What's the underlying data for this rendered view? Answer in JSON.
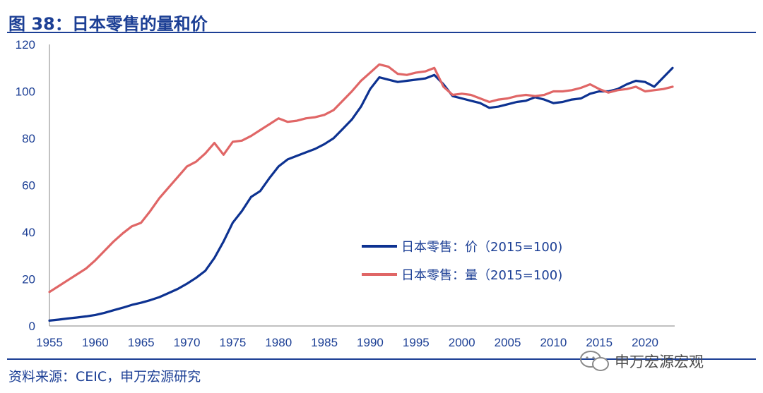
{
  "header": {
    "title": "图 38：日本零售的量和价"
  },
  "footer": {
    "source": "资料来源：CEIC，申万宏源研究",
    "watermark": "申万宏源宏观"
  },
  "colors": {
    "accent": "#1c3f95",
    "price_series": "#0d3291",
    "volume_series": "#e06666"
  },
  "chart_data": {
    "type": "line",
    "xlim": [
      1955,
      2023
    ],
    "ylim": [
      0,
      120
    ],
    "xticks": [
      1955,
      1960,
      1965,
      1970,
      1975,
      1980,
      1985,
      1990,
      1995,
      2000,
      2005,
      2010,
      2015,
      2020
    ],
    "yticks": [
      0,
      20,
      40,
      60,
      80,
      100,
      120
    ],
    "grid": false,
    "legend_position": "center-right",
    "series": [
      {
        "name": "日本零售：价（2015=100)",
        "color": "#0d3291",
        "x": [
          1955,
          1956,
          1957,
          1958,
          1959,
          1960,
          1961,
          1962,
          1963,
          1964,
          1965,
          1966,
          1967,
          1968,
          1969,
          1970,
          1971,
          1972,
          1973,
          1974,
          1975,
          1976,
          1977,
          1978,
          1979,
          1980,
          1981,
          1982,
          1983,
          1984,
          1985,
          1986,
          1987,
          1988,
          1989,
          1990,
          1991,
          1992,
          1993,
          1994,
          1995,
          1996,
          1997,
          1998,
          1999,
          2000,
          2001,
          2002,
          2003,
          2004,
          2005,
          2006,
          2007,
          2008,
          2009,
          2010,
          2011,
          2012,
          2013,
          2014,
          2015,
          2016,
          2017,
          2018,
          2019,
          2020,
          2021,
          2022,
          2023
        ],
        "y": [
          2.3,
          2.7,
          3.2,
          3.6,
          4.1,
          4.7,
          5.6,
          6.7,
          7.8,
          9.0,
          9.9,
          11.0,
          12.3,
          14.0,
          15.8,
          18.0,
          20.5,
          23.5,
          29.0,
          36.0,
          44.0,
          49.0,
          55.0,
          57.5,
          63.0,
          68.0,
          71.0,
          72.5,
          74.0,
          75.5,
          77.5,
          80.0,
          84.0,
          88.0,
          93.5,
          101.0,
          106.0,
          105.0,
          104.0,
          104.5,
          105.0,
          105.5,
          107.0,
          103.0,
          98.0,
          97.0,
          96.0,
          95.0,
          93.0,
          93.5,
          94.5,
          95.5,
          96.0,
          97.5,
          96.5,
          95.0,
          95.5,
          96.5,
          97.0,
          99.0,
          100.0,
          100.0,
          101.0,
          103.0,
          104.5,
          104.0,
          102.0,
          106.0,
          110.0
        ]
      },
      {
        "name": "日本零售：量（2015=100)",
        "color": "#e06666",
        "x": [
          1955,
          1956,
          1957,
          1958,
          1959,
          1960,
          1961,
          1962,
          1963,
          1964,
          1965,
          1966,
          1967,
          1968,
          1969,
          1970,
          1971,
          1972,
          1973,
          1974,
          1975,
          1976,
          1977,
          1978,
          1979,
          1980,
          1981,
          1982,
          1983,
          1984,
          1985,
          1986,
          1987,
          1988,
          1989,
          1990,
          1991,
          1992,
          1993,
          1994,
          1995,
          1996,
          1997,
          1998,
          1999,
          2000,
          2001,
          2002,
          2003,
          2004,
          2005,
          2006,
          2007,
          2008,
          2009,
          2010,
          2011,
          2012,
          2013,
          2014,
          2015,
          2016,
          2017,
          2018,
          2019,
          2020,
          2021,
          2022,
          2023
        ],
        "y": [
          14.5,
          17.0,
          19.5,
          22.0,
          24.5,
          28.0,
          32.0,
          36.0,
          39.5,
          42.5,
          44.0,
          49.0,
          54.5,
          59.0,
          63.5,
          68.0,
          70.0,
          73.5,
          78.0,
          73.0,
          78.5,
          79.0,
          81.0,
          83.5,
          86.0,
          88.5,
          87.0,
          87.5,
          88.5,
          89.0,
          90.0,
          92.0,
          96.0,
          100.0,
          104.5,
          108.0,
          111.5,
          110.5,
          107.5,
          107.0,
          108.0,
          108.5,
          110.0,
          102.0,
          98.5,
          99.0,
          98.5,
          97.0,
          95.5,
          96.5,
          97.0,
          98.0,
          98.5,
          98.0,
          98.5,
          100.0,
          100.0,
          100.5,
          101.5,
          103.0,
          101.0,
          99.5,
          100.5,
          101.0,
          102.0,
          100.0,
          100.5,
          101.0,
          102.0
        ]
      }
    ]
  }
}
